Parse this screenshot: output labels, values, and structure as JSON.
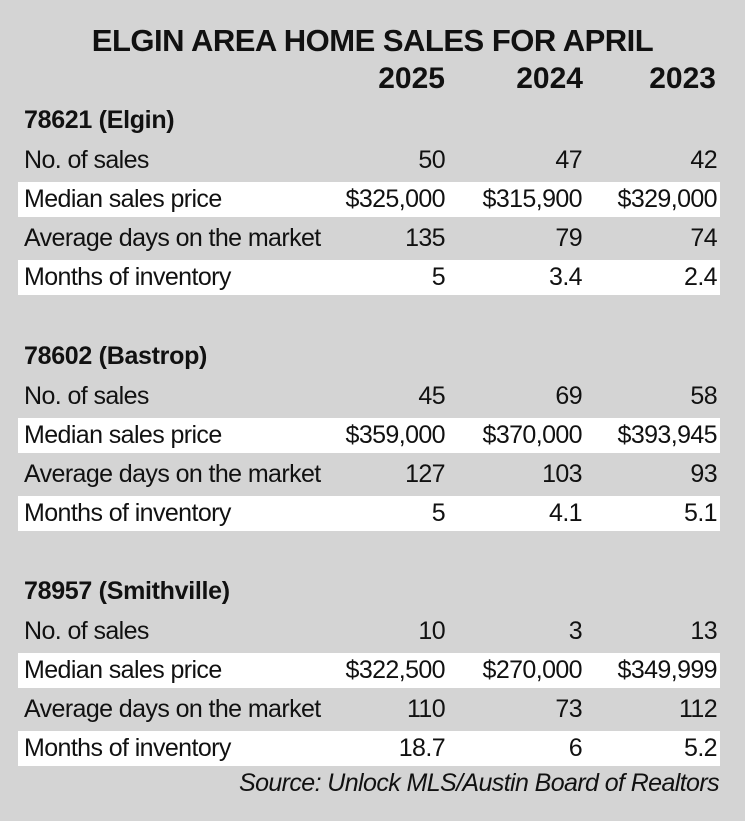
{
  "title": "ELGIN AREA HOME SALES FOR APRIL",
  "source": "Source: Unlock MLS/Austin Board of Realtors",
  "chart_data": {
    "type": "table",
    "title": "ELGIN AREA HOME SALES FOR APRIL",
    "columns": [
      "2025",
      "2024",
      "2023"
    ],
    "sections": [
      {
        "name": "78621 (Elgin)",
        "rows": [
          {
            "label": "No. of sales",
            "values": [
              "50",
              "47",
              "42"
            ]
          },
          {
            "label": "Median sales price",
            "values": [
              "$325,000",
              "$315,900",
              "$329,000"
            ]
          },
          {
            "label": "Average days on the market",
            "values": [
              "135",
              "79",
              "74"
            ]
          },
          {
            "label": "Months of inventory",
            "values": [
              "5",
              "3.4",
              "2.4"
            ]
          }
        ]
      },
      {
        "name": "78602 (Bastrop)",
        "rows": [
          {
            "label": "No. of sales",
            "values": [
              "45",
              "69",
              "58"
            ]
          },
          {
            "label": "Median sales price",
            "values": [
              "$359,000",
              "$370,000",
              "$393,945"
            ]
          },
          {
            "label": "Average days on the market",
            "values": [
              "127",
              "103",
              "93"
            ]
          },
          {
            "label": "Months of inventory",
            "values": [
              "5",
              "4.1",
              "5.1"
            ]
          }
        ]
      },
      {
        "name": "78957 (Smithville)",
        "rows": [
          {
            "label": "No. of sales",
            "values": [
              "10",
              "3",
              "13"
            ]
          },
          {
            "label": "Median sales price",
            "values": [
              "$322,500",
              "$270,000",
              "$349,999"
            ]
          },
          {
            "label": "Average days on the market",
            "values": [
              "110",
              "73",
              "112"
            ]
          },
          {
            "label": "Months of inventory",
            "values": [
              "18.7",
              "6",
              "5.2"
            ]
          }
        ]
      }
    ]
  }
}
